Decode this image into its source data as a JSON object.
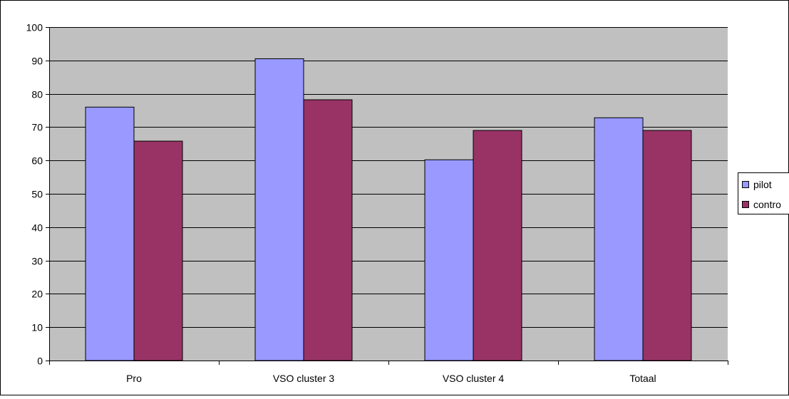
{
  "chart_data": {
    "type": "bar",
    "title": "",
    "xlabel": "",
    "ylabel": "",
    "categories": [
      "Pro",
      "VSO cluster 3",
      "VSO cluster 4",
      "Totaal"
    ],
    "series": [
      {
        "name": "pilot",
        "values": [
          76,
          90.5,
          60.2,
          72.8
        ],
        "color": "#9999ff"
      },
      {
        "name": "contro",
        "values": [
          65.8,
          78.2,
          69,
          69
        ],
        "color": "#993366"
      }
    ],
    "ylim": [
      0,
      100
    ],
    "yticks": [
      0,
      10,
      20,
      30,
      40,
      50,
      60,
      70,
      80,
      90,
      100
    ],
    "grid": true,
    "legend_position": "right",
    "plot_background": "#c0c0c0"
  }
}
